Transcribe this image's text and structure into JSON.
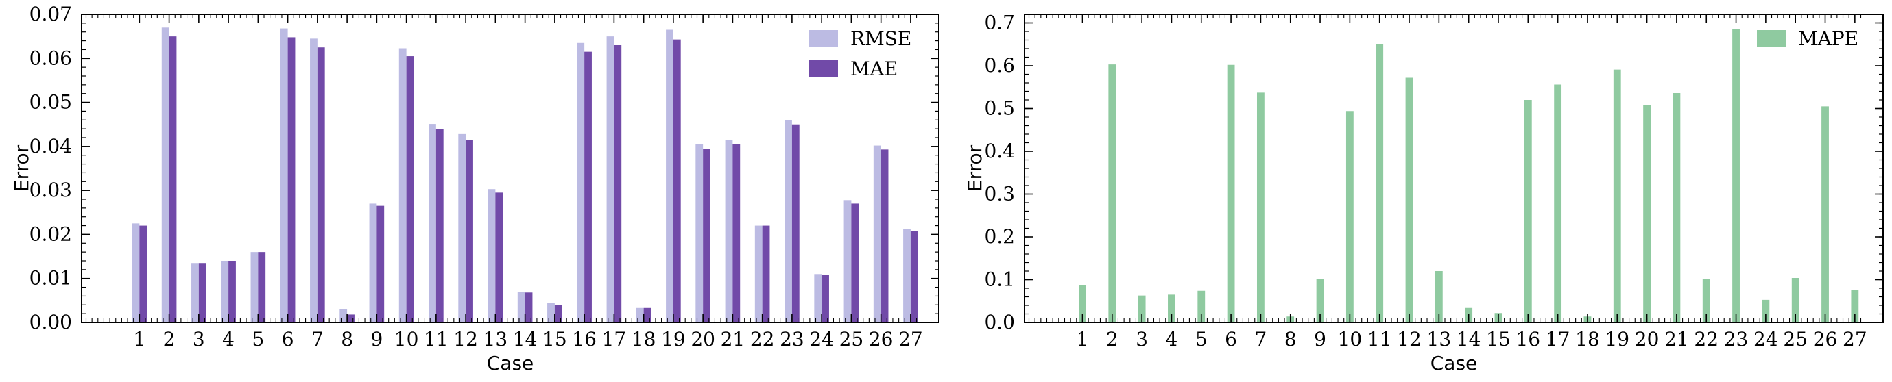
{
  "colors": {
    "rmse": "#bcbbe3",
    "mae": "#714aa8",
    "mape": "#8fcaa0",
    "frame": "#000000",
    "background": "#ffffff"
  },
  "chart_data": [
    {
      "type": "bar",
      "xlabel": "Case",
      "ylabel": "Error",
      "ylim": [
        0,
        0.07
      ],
      "yticks": [
        "0.00",
        "0.01",
        "0.02",
        "0.03",
        "0.04",
        "0.05",
        "0.06",
        "0.07"
      ],
      "legend_position": "upper-right",
      "grid": false,
      "categories": [
        "1",
        "2",
        "3",
        "4",
        "5",
        "6",
        "7",
        "8",
        "9",
        "10",
        "11",
        "12",
        "13",
        "14",
        "15",
        "16",
        "17",
        "18",
        "19",
        "20",
        "21",
        "22",
        "23",
        "24",
        "25",
        "26",
        "27"
      ],
      "series": [
        {
          "name": "RMSE",
          "values": [
            0.0225,
            0.067,
            0.0135,
            0.014,
            0.016,
            0.0668,
            0.0645,
            0.003,
            0.027,
            0.0623,
            0.0451,
            0.0428,
            0.0303,
            0.007,
            0.0045,
            0.0635,
            0.065,
            0.0033,
            0.0665,
            0.0405,
            0.0415,
            0.022,
            0.046,
            0.011,
            0.0278,
            0.0402,
            0.0213
          ]
        },
        {
          "name": "MAE",
          "values": [
            0.022,
            0.065,
            0.0135,
            0.014,
            0.016,
            0.0648,
            0.0625,
            0.0018,
            0.0265,
            0.0605,
            0.044,
            0.0415,
            0.0295,
            0.0068,
            0.004,
            0.0615,
            0.063,
            0.0033,
            0.0643,
            0.0395,
            0.0405,
            0.022,
            0.045,
            0.0108,
            0.027,
            0.0393,
            0.0207
          ]
        }
      ]
    },
    {
      "type": "bar",
      "xlabel": "Case",
      "ylabel": "Error",
      "ylim": [
        0,
        0.72
      ],
      "yticks": [
        "0.0",
        "0.1",
        "0.2",
        "0.3",
        "0.4",
        "0.5",
        "0.6",
        "0.7"
      ],
      "legend_position": "upper-right",
      "grid": false,
      "categories": [
        "1",
        "2",
        "3",
        "4",
        "5",
        "6",
        "7",
        "8",
        "9",
        "10",
        "11",
        "12",
        "13",
        "14",
        "15",
        "16",
        "17",
        "18",
        "19",
        "20",
        "21",
        "22",
        "23",
        "24",
        "25",
        "26",
        "27"
      ],
      "series": [
        {
          "name": "MAPE",
          "values": [
            0.087,
            0.603,
            0.063,
            0.065,
            0.074,
            0.602,
            0.537,
            0.014,
            0.101,
            0.494,
            0.651,
            0.572,
            0.12,
            0.034,
            0.022,
            0.52,
            0.556,
            0.014,
            0.591,
            0.508,
            0.536,
            0.102,
            0.686,
            0.053,
            0.104,
            0.505,
            0.076
          ]
        }
      ]
    }
  ]
}
